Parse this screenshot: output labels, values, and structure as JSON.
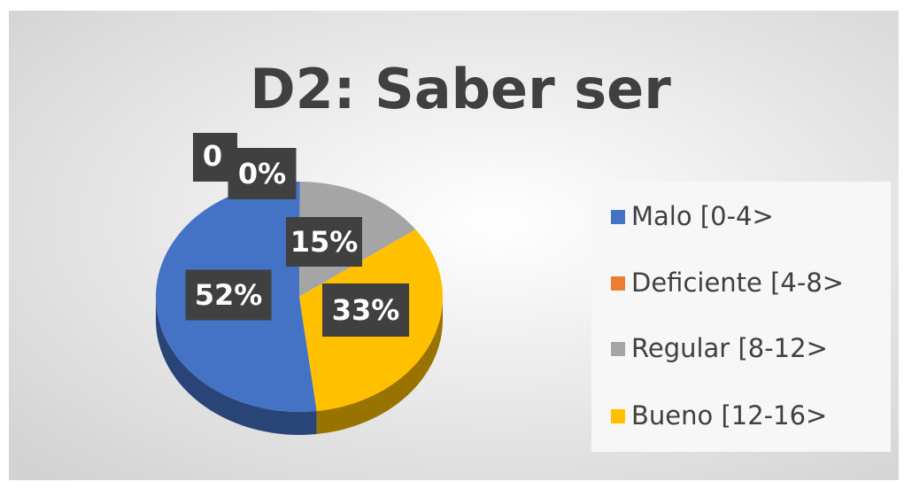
{
  "chart_data": {
    "type": "pie",
    "title": "D2: Saber ser",
    "categories": [
      "Malo [0-4>",
      "Deficiente [4-8>",
      "Regular [8-12>",
      "Bueno  [12-16>"
    ],
    "values": [
      52,
      0,
      15,
      33
    ],
    "value_labels": [
      "52%",
      "0%",
      "15%",
      "33%"
    ],
    "colors": [
      "#4472c4",
      "#ed7d31",
      "#a5a5a5",
      "#ffc000"
    ],
    "annotations": [
      "0"
    ],
    "legend": "right"
  }
}
